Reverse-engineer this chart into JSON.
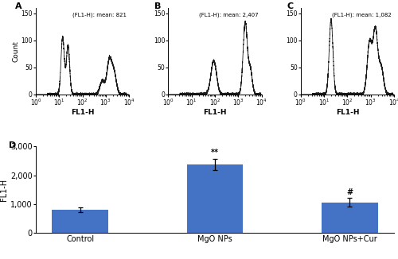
{
  "panel_labels": [
    "A",
    "B",
    "C",
    "D"
  ],
  "flow_titles": [
    "(FL1-H): mean: 821",
    "(FL1-H): mean: 2,407",
    "(FL1-H): mean: 1,082"
  ],
  "flow_xlabel": "FL1-H",
  "flow_ylabel": "Count",
  "flow_xlim_log": [
    0,
    4
  ],
  "flow_ylim": [
    0,
    160
  ],
  "flow_yticks": [
    0,
    50,
    100,
    150
  ],
  "bar_categories": [
    "Control",
    "MgO NPs",
    "MgO NPs+Cur"
  ],
  "bar_values": [
    800,
    2380,
    1060
  ],
  "bar_errors": [
    80,
    200,
    150
  ],
  "bar_color": "#4472C4",
  "bar_ylabel": "FL1-H",
  "bar_ylim": [
    0,
    3000
  ],
  "bar_yticks": [
    0,
    1000,
    2000,
    3000
  ],
  "bar_ytick_labels": [
    "0",
    "1,000",
    "2,000",
    "3,000"
  ],
  "annotations": [
    "",
    "**",
    "#"
  ],
  "panel_d_label": "D",
  "bg_color": "#ffffff",
  "line_color": "#1a1a1a"
}
